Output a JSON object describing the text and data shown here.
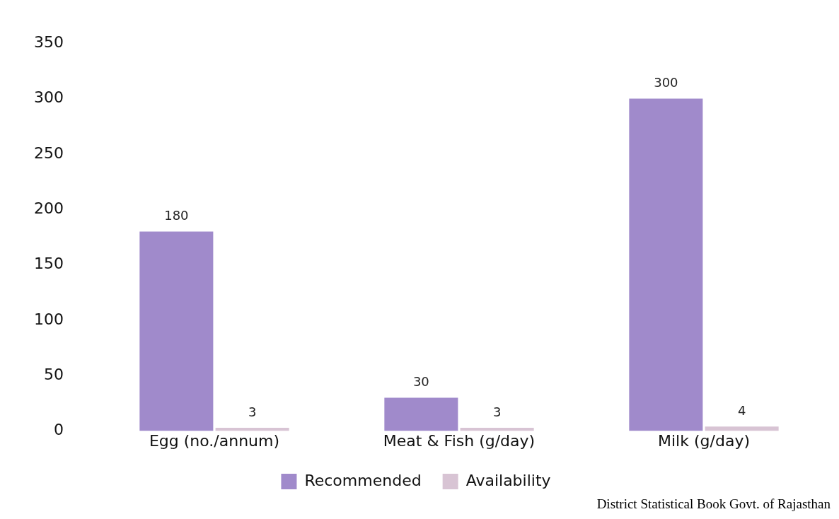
{
  "chart_data": {
    "type": "bar",
    "categories": [
      "Egg (no./annum)",
      "Meat & Fish (g/day)",
      "Milk (g/day)"
    ],
    "series": [
      {
        "name": "Recommended",
        "color": "#a08acb",
        "values": [
          180,
          30,
          300
        ]
      },
      {
        "name": "Availability",
        "color": "#d8c4d4",
        "values": [
          3,
          3,
          4
        ]
      }
    ],
    "ylim": [
      0,
      350
    ],
    "yticks": [
      0,
      50,
      100,
      150,
      200,
      250,
      300,
      350
    ],
    "grid": false,
    "legend": "bottom",
    "data_labels": true,
    "annotations": [
      "District Statistical Book Govt. of Rajasthan"
    ]
  }
}
